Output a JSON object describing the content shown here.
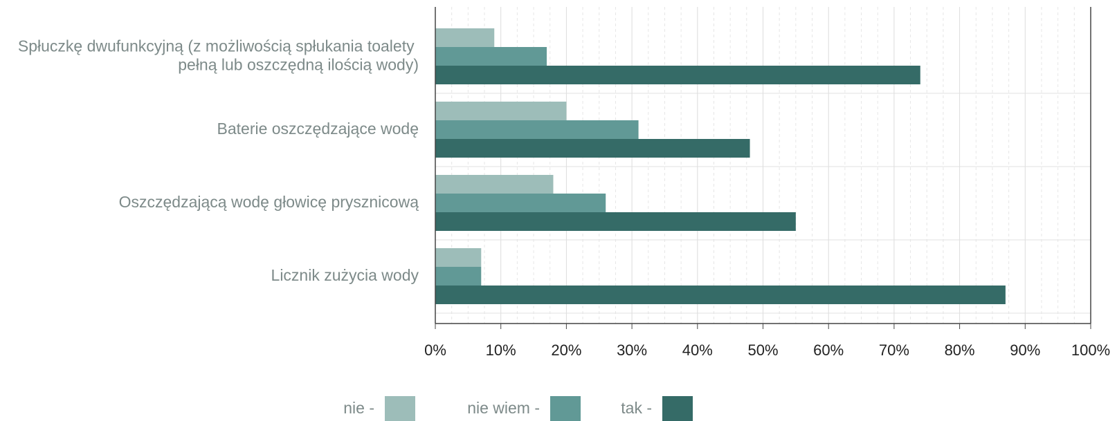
{
  "chart_data": {
    "type": "bar",
    "orientation": "horizontal",
    "categories": [
      "Spłuczkę dwufunkcyjną (z możliwością spłukania toalety pełną lub oszczędną ilością wody)",
      "Baterie oszczędzające wodę",
      "Oszczędzającą wodę głowicę prysznicową",
      "Licznik zużycia wody"
    ],
    "series": [
      {
        "name": "nie -",
        "color": "#9dbdb9",
        "values": [
          9,
          20,
          18,
          7
        ]
      },
      {
        "name": "nie wiem -",
        "color": "#619996",
        "values": [
          17,
          31,
          26,
          7
        ]
      },
      {
        "name": "tak -",
        "color": "#356b67",
        "values": [
          74,
          48,
          55,
          87
        ]
      }
    ],
    "xlim": [
      0,
      100
    ],
    "xticks": [
      {
        "value": 0,
        "label": "0%"
      },
      {
        "value": 10,
        "label": "10%"
      },
      {
        "value": 20,
        "label": "20%"
      },
      {
        "value": 30,
        "label": "30%"
      },
      {
        "value": 40,
        "label": "40%"
      },
      {
        "value": 50,
        "label": "50%"
      },
      {
        "value": 60,
        "label": "60%"
      },
      {
        "value": 70,
        "label": "70%"
      },
      {
        "value": 80,
        "label": "80%"
      },
      {
        "value": 90,
        "label": "90%"
      },
      {
        "value": 100,
        "label": "100%"
      }
    ],
    "grid": true,
    "legend": "bottom"
  }
}
